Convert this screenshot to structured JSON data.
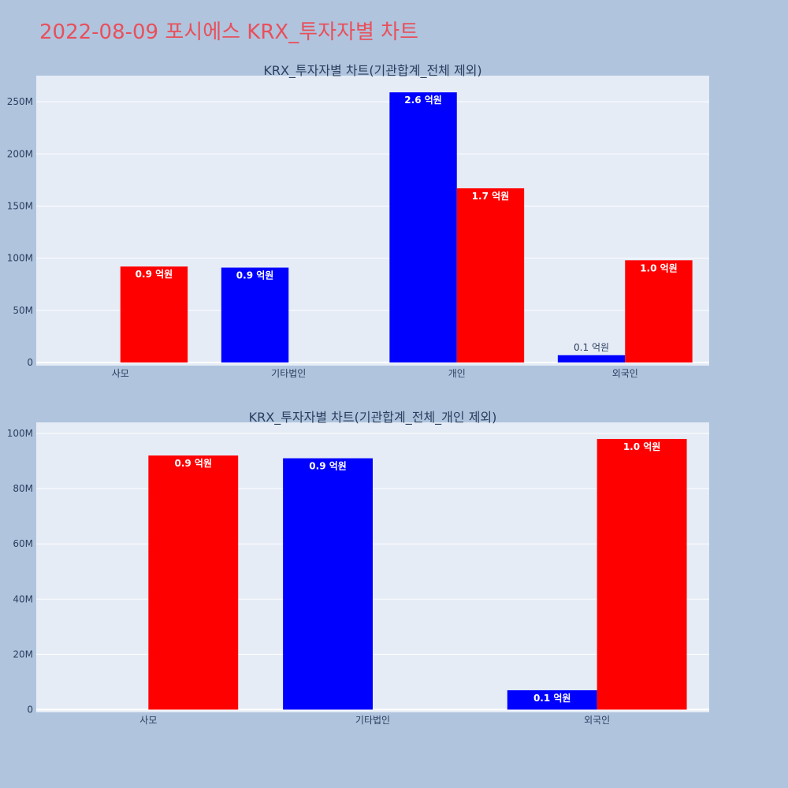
{
  "title": "2022-08-09 포시에스 KRX_투자자별 차트",
  "colors": {
    "page_bg": "#b0c4de",
    "plot_bg": "#e5ecf6",
    "buy": "#0000ff",
    "sell": "#ff0000",
    "title": "#e8505b",
    "text": "#2a3f5f"
  },
  "chart_data": [
    {
      "type": "bar",
      "title": "KRX_투자자별 차트(기관합계_전체 제외)",
      "categories": [
        "사모",
        "기타법인",
        "개인",
        "외국인"
      ],
      "ylim": [
        -3000000,
        275000000
      ],
      "yticks": [
        0,
        50000000,
        100000000,
        150000000,
        200000000,
        250000000
      ],
      "ytick_labels": [
        "0",
        "50M",
        "100M",
        "150M",
        "200M",
        "250M"
      ],
      "grid": true,
      "series": [
        {
          "color": "#0000ff",
          "values": [
            null,
            91000000,
            259000000,
            7000000
          ],
          "labels": [
            "",
            "0.9 억원",
            "2.6 억원",
            "0.1 억원"
          ]
        },
        {
          "color": "#ff0000",
          "values": [
            92000000,
            null,
            167000000,
            98000000
          ],
          "labels": [
            "0.9 억원",
            "",
            "1.7 억원",
            "1.0 억원"
          ]
        }
      ]
    },
    {
      "type": "bar",
      "title": "KRX_투자자별 차트(기관합계_전체_개인 제외)",
      "categories": [
        "사모",
        "기타법인",
        "외국인"
      ],
      "ylim": [
        -1000000,
        104000000
      ],
      "yticks": [
        0,
        20000000,
        40000000,
        60000000,
        80000000,
        100000000
      ],
      "ytick_labels": [
        "0",
        "20M",
        "40M",
        "60M",
        "80M",
        "100M"
      ],
      "grid": true,
      "series": [
        {
          "color": "#0000ff",
          "values": [
            null,
            91000000,
            7000000
          ],
          "labels": [
            "",
            "0.9 억원",
            "0.1 억원"
          ]
        },
        {
          "color": "#ff0000",
          "values": [
            92000000,
            null,
            98000000
          ],
          "labels": [
            "0.9 억원",
            "",
            "1.0 억원"
          ]
        }
      ]
    }
  ]
}
